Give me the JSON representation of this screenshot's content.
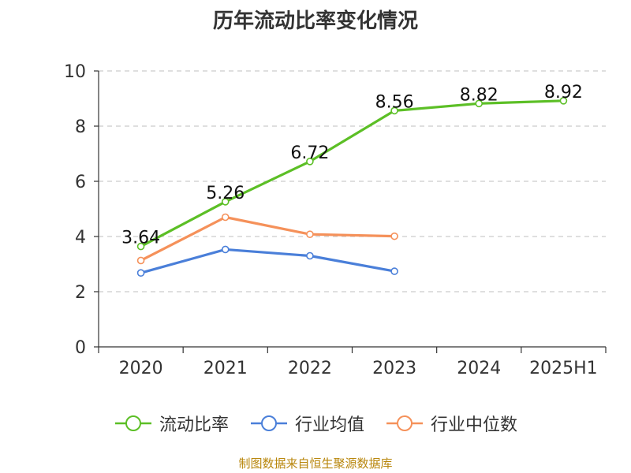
{
  "title": "历年流动比率变化情况",
  "source": "制图数据来自恒生聚源数据库",
  "chart_data": {
    "type": "line",
    "categories": [
      "2020",
      "2021",
      "2022",
      "2023",
      "2024",
      "2025H1"
    ],
    "ylim": [
      0,
      10
    ],
    "yticks": [
      0,
      2,
      4,
      6,
      8,
      10
    ],
    "grid": true,
    "legend_position": "bottom",
    "series": [
      {
        "name": "流动比率",
        "color": "#5cbf26",
        "values": [
          3.64,
          5.26,
          6.72,
          8.56,
          8.82,
          8.92
        ],
        "labels": true
      },
      {
        "name": "行业均值",
        "color": "#4a7fd9",
        "values": [
          2.68,
          3.53,
          3.3,
          2.74,
          null,
          null
        ],
        "labels": false
      },
      {
        "name": "行业中位数",
        "color": "#f5915a",
        "values": [
          3.13,
          4.7,
          4.08,
          4.01,
          null,
          null
        ],
        "labels": false
      }
    ]
  }
}
